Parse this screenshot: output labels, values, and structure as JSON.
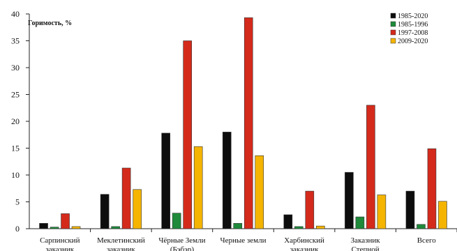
{
  "chart_data": {
    "type": "bar",
    "ylabel": "Горимость, %",
    "ylim": [
      0,
      40
    ],
    "yticks": [
      0,
      5,
      10,
      15,
      20,
      25,
      30,
      35,
      40
    ],
    "grid": false,
    "legend_position": "top-right",
    "categories": [
      [
        "Сарпинский",
        "заказник"
      ],
      [
        "Меклетинский",
        "заказник"
      ],
      [
        "Чёрные Земли",
        "(Бэбэр)"
      ],
      [
        "Черные земли"
      ],
      [
        "Харбинский",
        "заказник"
      ],
      [
        "Заказник",
        "Степной"
      ],
      [
        "Всего"
      ]
    ],
    "series": [
      {
        "name": "1985-2020",
        "color": "#0d0d0d",
        "values": [
          1.0,
          6.4,
          17.8,
          18.0,
          2.6,
          10.5,
          7.0
        ]
      },
      {
        "name": "1985-1996",
        "color": "#1e8a3a",
        "values": [
          0.3,
          0.4,
          2.9,
          1.0,
          0.4,
          2.2,
          0.8
        ]
      },
      {
        "name": "1997-2008",
        "color": "#d42a1c",
        "values": [
          2.8,
          11.3,
          35.0,
          39.3,
          7.0,
          23.0,
          14.9
        ]
      },
      {
        "name": "2009-2020",
        "color": "#f4b400",
        "values": [
          0.4,
          7.3,
          15.3,
          13.6,
          0.5,
          6.3,
          5.1
        ]
      }
    ]
  }
}
